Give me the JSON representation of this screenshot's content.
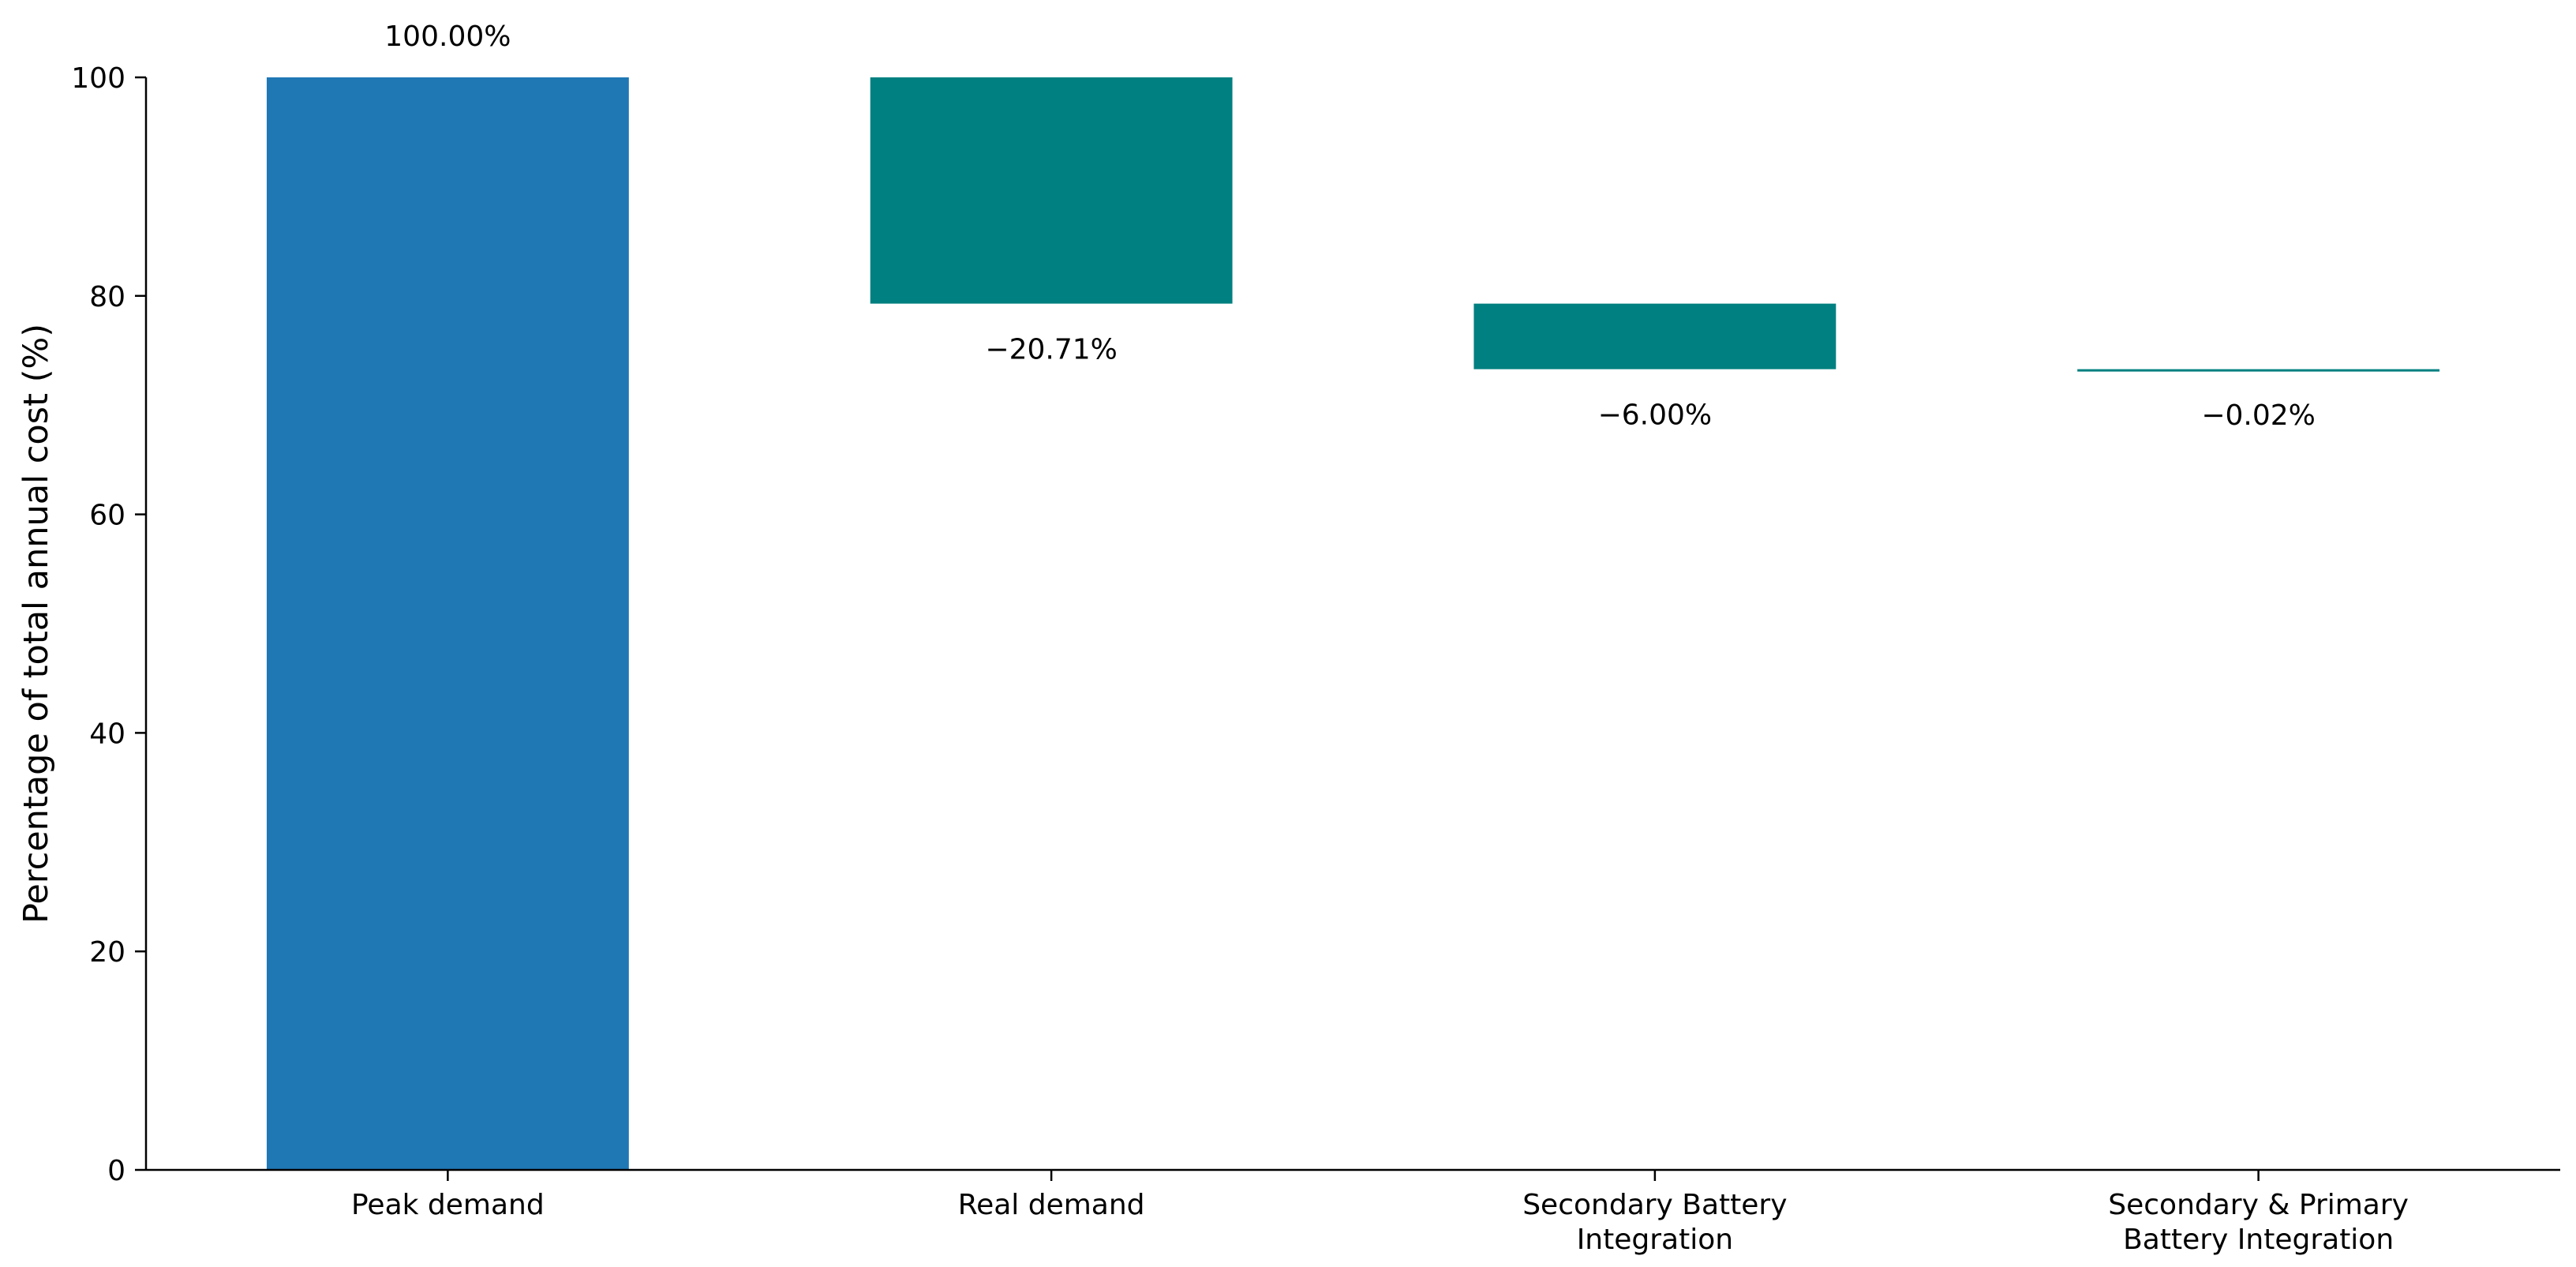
{
  "chart_data": {
    "type": "bar",
    "subtype": "waterfall",
    "title": "",
    "xlabel": "",
    "ylabel": "Percentage of total annual cost (%)",
    "ylim": [
      0,
      100
    ],
    "yticks": [
      "0",
      "20",
      "40",
      "60",
      "80",
      "100"
    ],
    "grid": false,
    "categories": [
      [
        "Peak demand"
      ],
      [
        "Real demand"
      ],
      [
        "Secondary Battery",
        "Integration"
      ],
      [
        "Secondary & Primary",
        "Battery Integration"
      ]
    ],
    "bars": [
      {
        "category": "Peak demand",
        "bottom": 0,
        "top": 100,
        "label": "100.00%",
        "kind": "total"
      },
      {
        "category": "Real demand",
        "bottom": 79.29,
        "top": 100,
        "label": "−20.71%",
        "kind": "decrease"
      },
      {
        "category": "Secondary Battery Integration",
        "bottom": 73.29,
        "top": 79.29,
        "label": "−6.00%",
        "kind": "decrease"
      },
      {
        "category": "Secondary & Primary Battery Integration",
        "bottom": 73.27,
        "top": 73.29,
        "label": "−0.02%",
        "kind": "decrease"
      }
    ],
    "colors": {
      "total": "#1f77b4",
      "decrease": "#008080"
    }
  }
}
